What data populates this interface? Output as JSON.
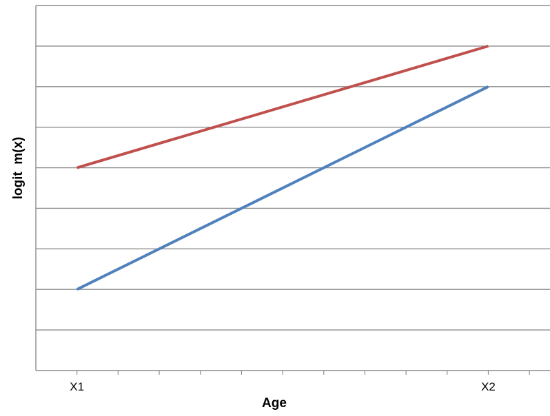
{
  "chart_data": {
    "type": "line",
    "title": "",
    "xlabel": "Age",
    "ylabel": "logit  m(x)",
    "x": [
      0,
      10
    ],
    "xlim": [
      -1,
      11.5
    ],
    "ylim": [
      0,
      9
    ],
    "x_ticks": [
      0,
      1,
      2,
      3,
      4,
      5,
      6,
      7,
      8,
      9,
      10,
      11
    ],
    "x_tick_labels": [
      {
        "x": 0,
        "label": "X1"
      },
      {
        "x": 10,
        "label": "X2"
      }
    ],
    "y_grid": [
      1,
      2,
      3,
      4,
      5,
      6,
      7,
      8,
      9
    ],
    "grid": true,
    "legend": "none",
    "series": [
      {
        "values": [
          5,
          8
        ],
        "color": "#c0504d"
      },
      {
        "values": [
          2,
          7
        ],
        "color": "#4f81bd"
      }
    ]
  }
}
